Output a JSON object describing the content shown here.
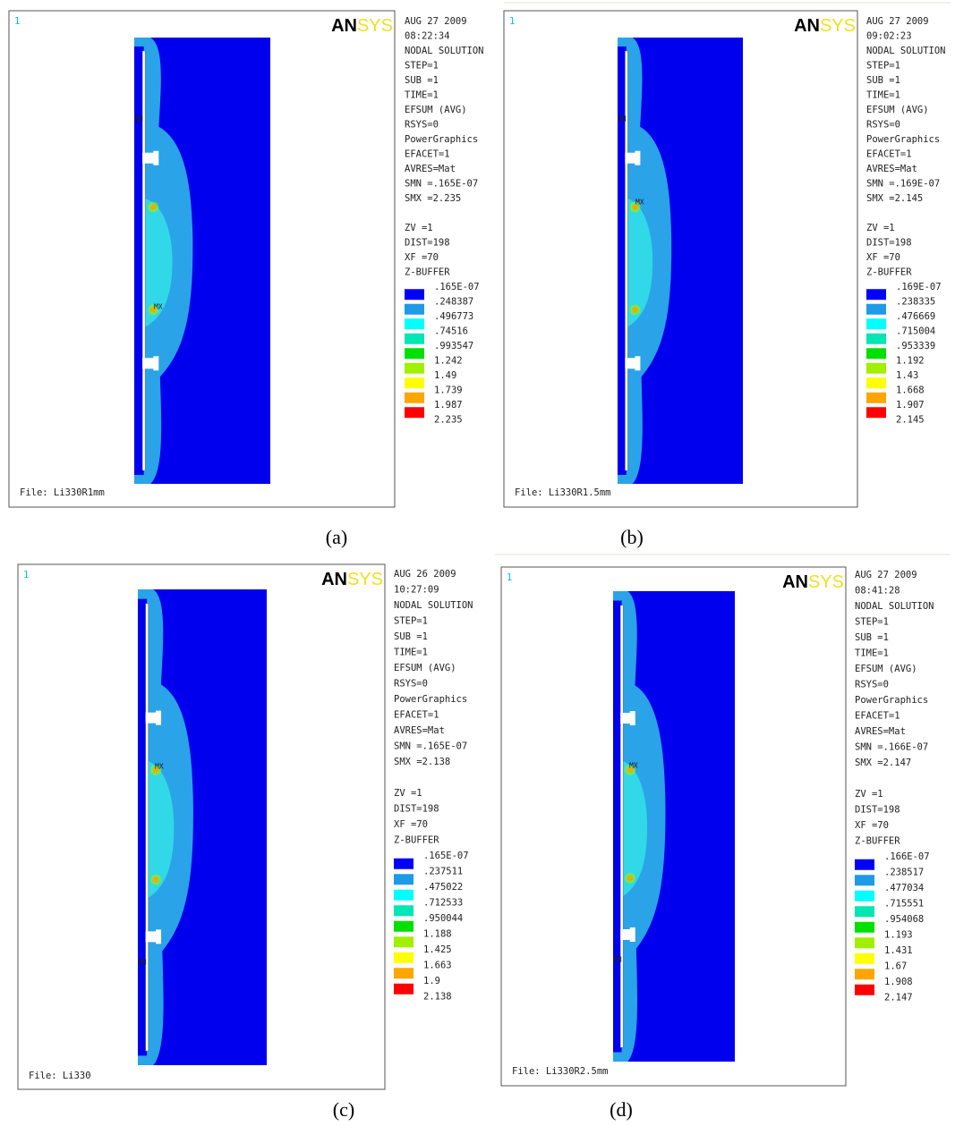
{
  "panels": [
    {
      "caption": "(a)",
      "window": "1",
      "logo_a": "AN",
      "logo_b": "SYS",
      "date": "AUG 27 2009",
      "time": "08:22:34",
      "info": [
        "NODAL SOLUTION",
        "STEP=1",
        "SUB =1",
        "TIME=1",
        "EFSUM    (AVG)",
        "RSYS=0",
        "PowerGraphics",
        "EFACET=1",
        "AVRES=Mat",
        "SMN =.165E-07",
        "SMX =2.235"
      ],
      "view": [
        "ZV  =1",
        "DIST=198",
        "XF  =70",
        "Z-BUFFER"
      ],
      "legend": [
        ".165E-07",
        ".248387",
        ".496773",
        ".74516",
        ".993547",
        "1.242",
        "1.49",
        "1.739",
        "1.987",
        "2.235"
      ],
      "markers": [
        "MN",
        "MX"
      ],
      "file": "File: Li330R1mm"
    },
    {
      "caption": "(b)",
      "window": "1",
      "logo_a": "AN",
      "logo_b": "SYS",
      "date": "AUG 27 2009",
      "time": "09:02:23",
      "info": [
        "NODAL SOLUTION",
        "STEP=1",
        "SUB =1",
        "TIME=1",
        "EFSUM    (AVG)",
        "RSYS=0",
        "PowerGraphics",
        "EFACET=1",
        "AVRES=Mat",
        "SMN =.169E-07",
        "SMX =2.145"
      ],
      "view": [
        "ZV  =1",
        "DIST=198",
        "XF  =70",
        "Z-BUFFER"
      ],
      "legend": [
        ".169E-07",
        ".238335",
        ".476669",
        ".715004",
        ".953339",
        "1.192",
        "1.43",
        "1.668",
        "1.907",
        "2.145"
      ],
      "markers": [
        "MN",
        "MX"
      ],
      "file": "File: Li330R1.5mm"
    },
    {
      "caption": "(c)",
      "window": "1",
      "logo_a": "AN",
      "logo_b": "SYS",
      "date": "AUG 26 2009",
      "time": "10:27:09",
      "info": [
        "NODAL SOLUTION",
        "STEP=1",
        "SUB =1",
        "TIME=1",
        "EFSUM    (AVG)",
        "RSYS=0",
        "PowerGraphics",
        "EFACET=1",
        "AVRES=Mat",
        "SMN =.165E-07",
        "SMX =2.138"
      ],
      "view": [
        "ZV  =1",
        "DIST=198",
        "XF  =70",
        "Z-BUFFER"
      ],
      "legend": [
        ".165E-07",
        ".237511",
        ".475022",
        ".712533",
        ".950044",
        "1.188",
        "1.425",
        "1.663",
        "1.9",
        "2.138"
      ],
      "markers": [
        "MX",
        "MN"
      ],
      "file": "File: Li330"
    },
    {
      "caption": "(d)",
      "window": "1",
      "logo_a": "AN",
      "logo_b": "SYS",
      "date": "AUG 27 2009",
      "time": "08:41:28",
      "info": [
        "NODAL SOLUTION",
        "STEP=1",
        "SUB =1",
        "TIME=1",
        "EFSUM    (AVG)",
        "RSYS=0",
        "PowerGraphics",
        "EFACET=1",
        "AVRES=Mat",
        "SMN =.166E-07",
        "SMX =2.147"
      ],
      "view": [
        "ZV  =1",
        "DIST=198",
        "XF  =70",
        "Z-BUFFER"
      ],
      "legend": [
        ".166E-07",
        ".238517",
        ".477034",
        ".715551",
        ".954068",
        "1.193",
        "1.431",
        "1.67",
        "1.908",
        "2.147"
      ],
      "markers": [
        "MX",
        "MN"
      ],
      "file": "File: Li330R2.5mm"
    }
  ]
}
